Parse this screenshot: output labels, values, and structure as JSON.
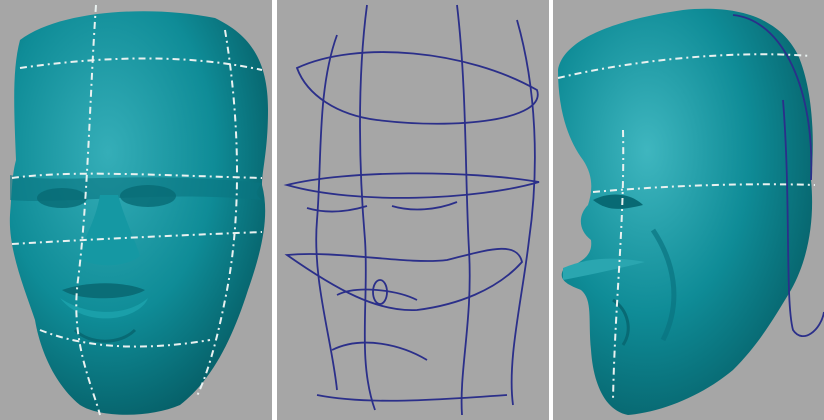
{
  "colors": {
    "background": "#a6a6a6",
    "mesh_surface": "#0f8c97",
    "mesh_highlight": "#3fb6bf",
    "mesh_shadow": "#04565e",
    "curve_on_surface": "#e9f1f0",
    "wire_curve": "#2b2f8a",
    "divider": "#ffffff"
  },
  "viewports": [
    {
      "id": "front-shaded",
      "icon": "face-mesh-front"
    },
    {
      "id": "front-wireframe",
      "icon": "face-curves-wireframe"
    },
    {
      "id": "side-shaded",
      "icon": "face-mesh-profile"
    }
  ]
}
